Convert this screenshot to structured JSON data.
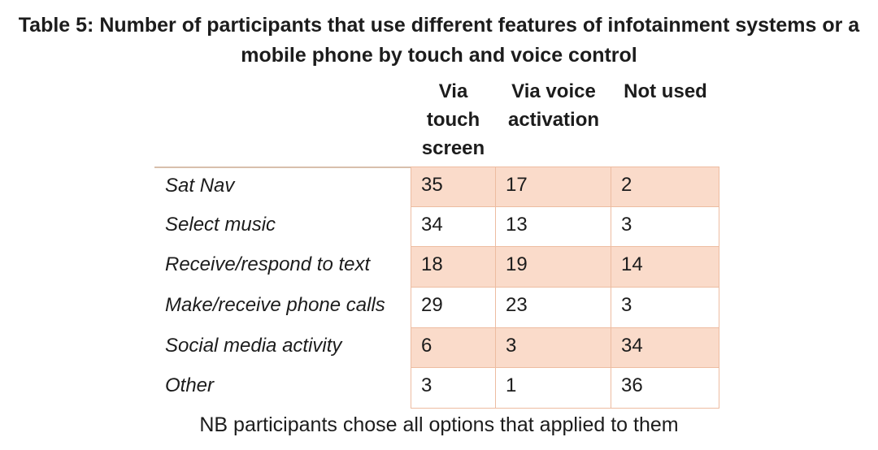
{
  "title": {
    "line1": "Table 5: Number of participants that use different features of infotainment systems or a",
    "line2": "mobile phone by touch and voice control"
  },
  "table": {
    "caption": "Table 5",
    "columns": [
      {
        "label": "Via\ntouch\nscreen"
      },
      {
        "label": "Via voice\nactivation"
      },
      {
        "label": "Not used"
      }
    ],
    "rows": [
      {
        "feature": "Sat Nav",
        "values": [
          35,
          17,
          2
        ],
        "shaded": true
      },
      {
        "feature": "Select music",
        "values": [
          34,
          13,
          3
        ],
        "shaded": false
      },
      {
        "feature": "Receive/respond to text",
        "values": [
          18,
          19,
          14
        ],
        "shaded": true
      },
      {
        "feature": "Make/receive phone calls",
        "values": [
          29,
          23,
          3
        ],
        "shaded": false
      },
      {
        "feature": "Social media activity",
        "values": [
          6,
          3,
          34
        ],
        "shaded": true
      },
      {
        "feature": "Other",
        "values": [
          3,
          1,
          36
        ],
        "shaded": false
      }
    ]
  },
  "footnote": "NB participants chose all options that applied to them",
  "chart_data": {
    "type": "table",
    "title": "Table 5: Number of participants that use different features of infotainment systems or a mobile phone by touch and voice control",
    "categories": [
      "Sat Nav",
      "Select music",
      "Receive/respond to text",
      "Make/receive phone calls",
      "Social media activity",
      "Other"
    ],
    "series": [
      {
        "name": "Via touch screen",
        "values": [
          35,
          34,
          18,
          29,
          6,
          3
        ]
      },
      {
        "name": "Via voice activation",
        "values": [
          17,
          13,
          19,
          23,
          3,
          1
        ]
      },
      {
        "name": "Not used",
        "values": [
          2,
          3,
          14,
          3,
          34,
          36
        ]
      }
    ],
    "note": "NB participants chose all options that applied to them"
  },
  "colors": {
    "row_shade": "#fadbca",
    "grid_border": "#edbca1",
    "label_top_rule": "#d8bfac",
    "text": "#1c1c1c",
    "background": "#ffffff"
  }
}
